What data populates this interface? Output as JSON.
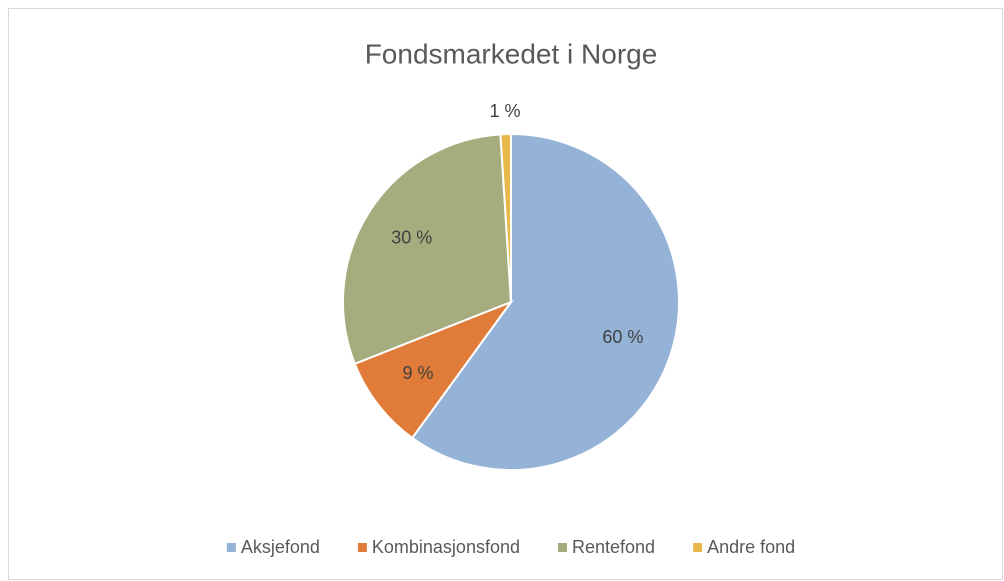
{
  "chart_data": {
    "type": "pie",
    "title": "Fondsmarkedet  i Norge",
    "categories": [
      "Aksjefond",
      "Kombinasjonsfond",
      "Rentefond",
      "Andre fond"
    ],
    "values": [
      60,
      9,
      30,
      1
    ],
    "value_labels": [
      "60 %",
      "9 %",
      "30 %",
      "1 %"
    ],
    "colors": [
      "#95b3d7",
      "#e07b39",
      "#a5ad7f",
      "#e8b84b"
    ],
    "legend": "bottom"
  }
}
